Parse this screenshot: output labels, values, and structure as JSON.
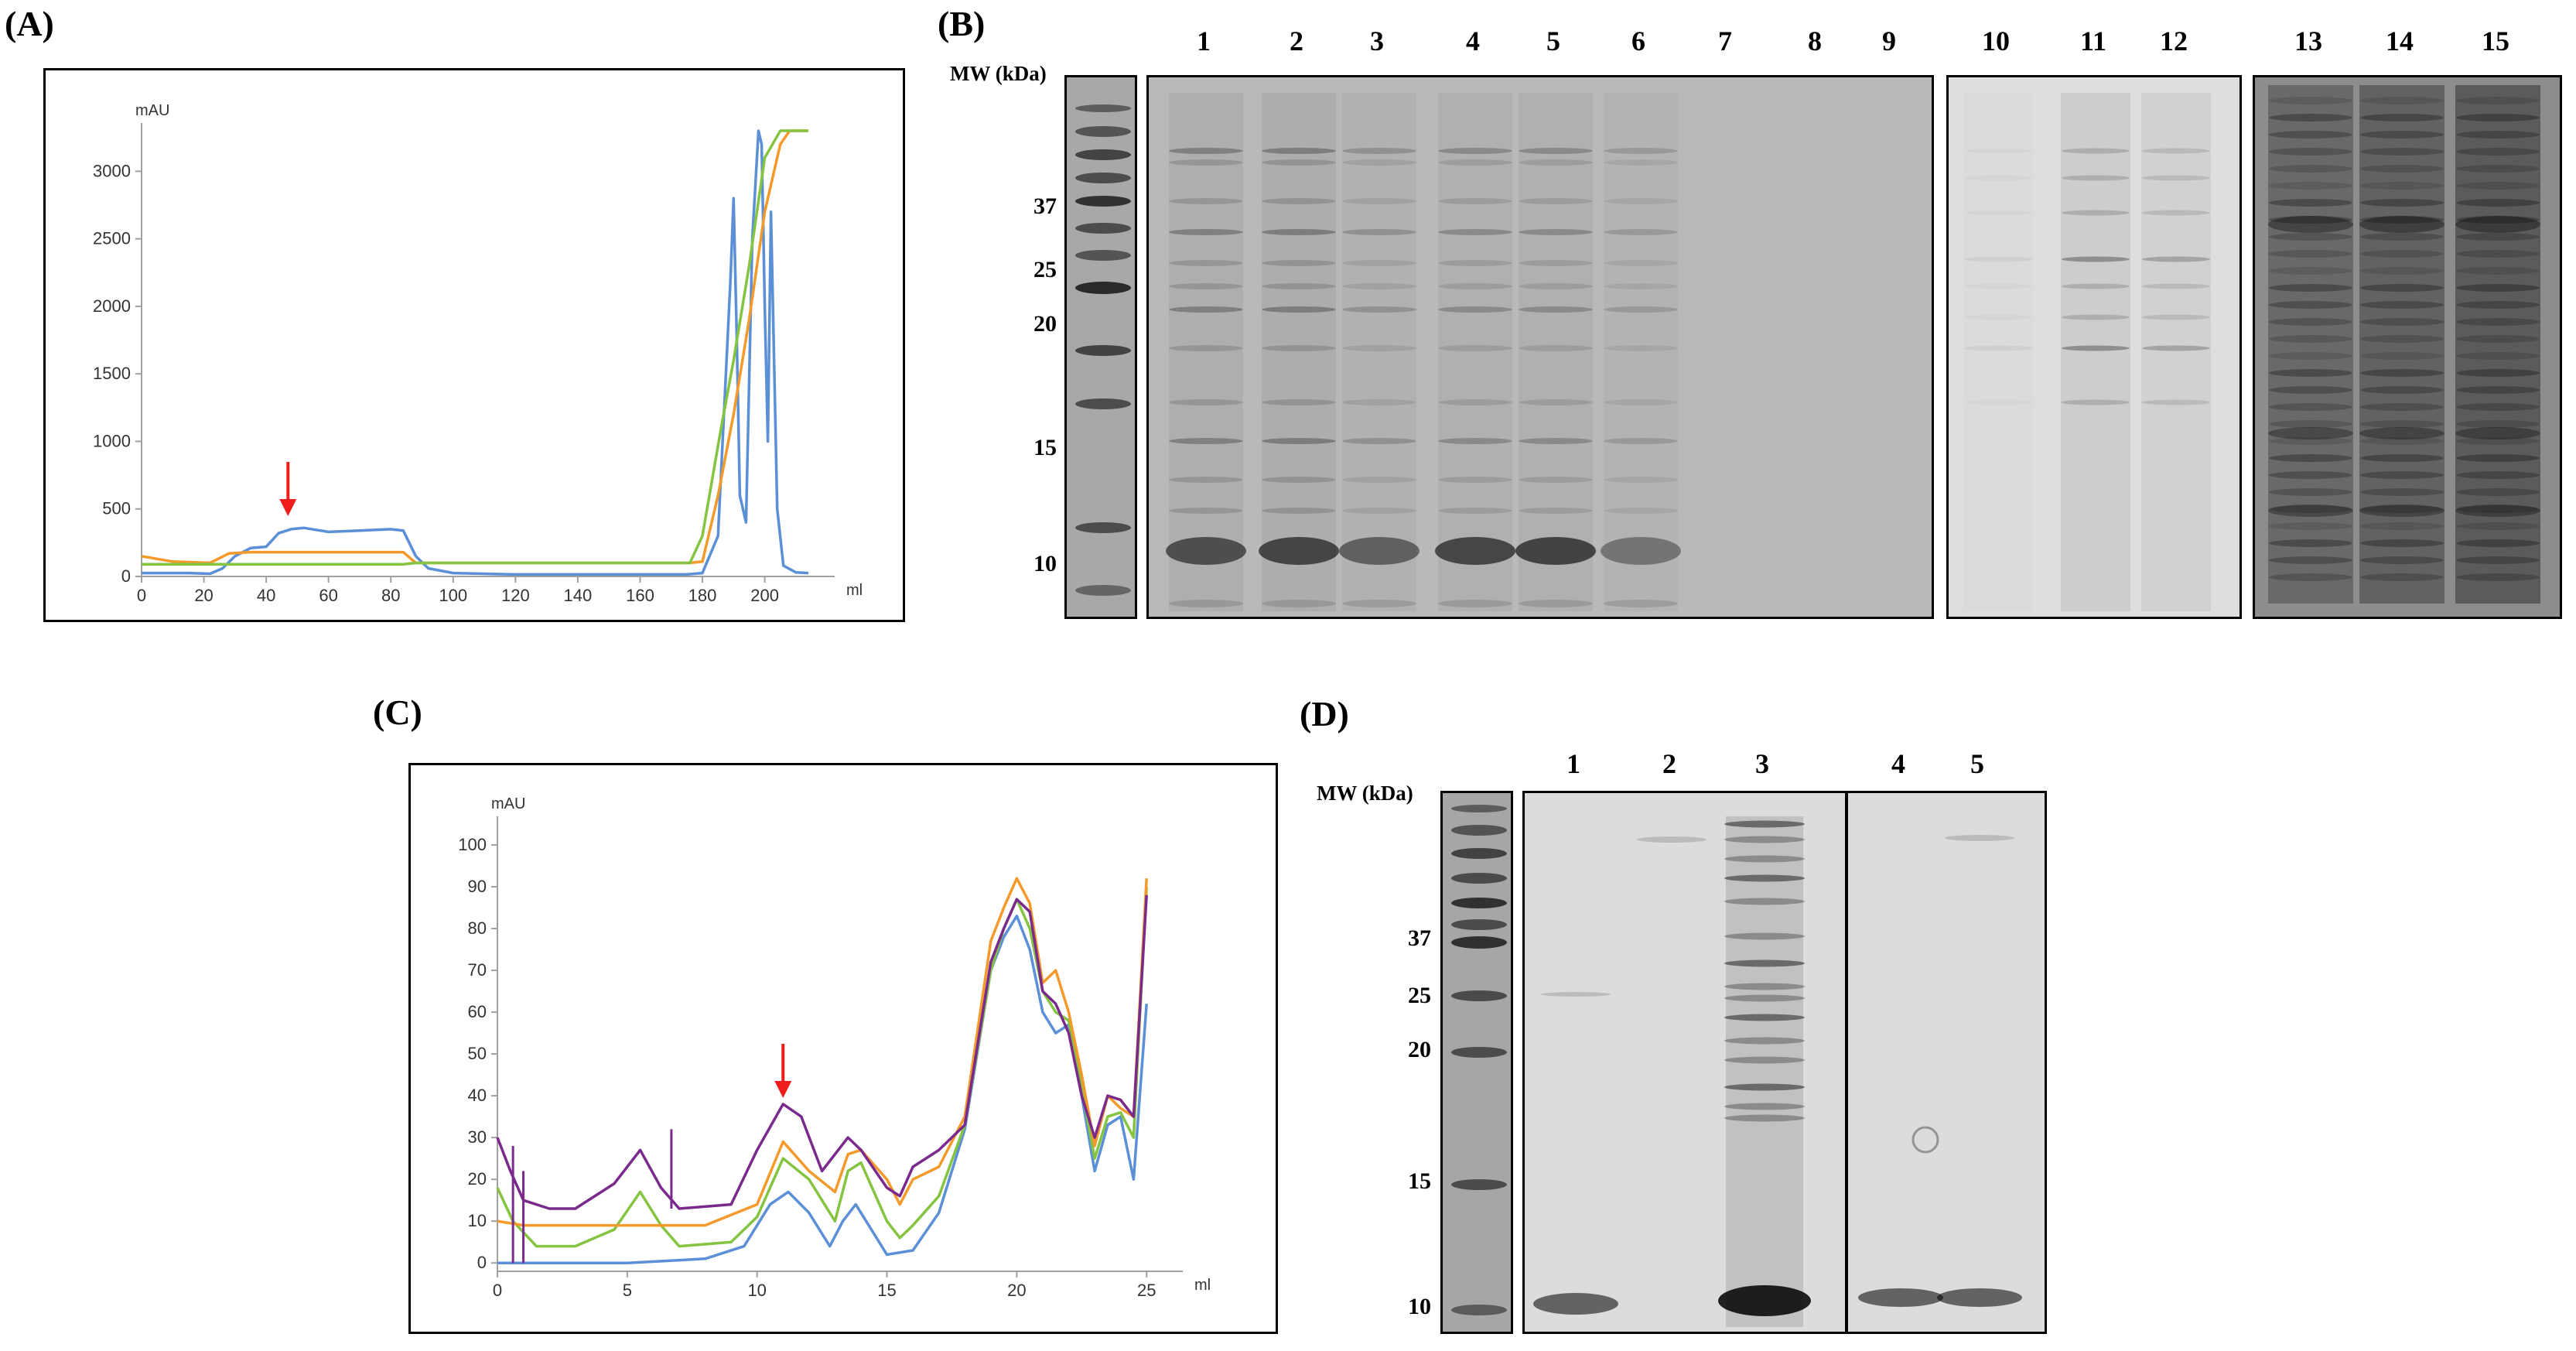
{
  "panels": {
    "A": {
      "label": "(A)"
    },
    "B": {
      "label": "(B)"
    },
    "C": {
      "label": "(C)"
    },
    "D": {
      "label": "(D)"
    }
  },
  "chart_data": [
    {
      "panel": "A",
      "type": "line",
      "ylabel": "mAU",
      "xlabel": "ml",
      "xlim": [
        0,
        215
      ],
      "ylim": [
        0,
        3300
      ],
      "xticks": [
        0,
        20,
        40,
        60,
        80,
        100,
        120,
        140,
        160,
        180,
        200
      ],
      "yticks": [
        0,
        500,
        1000,
        1500,
        2000,
        2500,
        3000
      ],
      "arrow_x": 47,
      "arrow_color": "#ee1c1c",
      "series": [
        {
          "color": "#5b8fd6",
          "x": [
            0,
            15,
            22,
            26,
            30,
            35,
            40,
            44,
            48,
            52,
            56,
            60,
            70,
            80,
            84,
            88,
            92,
            100,
            120,
            140,
            160,
            175,
            180,
            185,
            189,
            190,
            191,
            192,
            194,
            196,
            198,
            199,
            200,
            201,
            202,
            204,
            206,
            210,
            214
          ],
          "y": [
            25,
            25,
            20,
            60,
            150,
            210,
            220,
            320,
            350,
            360,
            345,
            330,
            340,
            350,
            340,
            150,
            60,
            25,
            15,
            15,
            15,
            15,
            25,
            300,
            2200,
            2800,
            1800,
            600,
            400,
            2500,
            3300,
            3200,
            2000,
            1000,
            2700,
            500,
            80,
            30,
            25
          ]
        },
        {
          "color": "#f39a2b",
          "x": [
            0,
            10,
            22,
            28,
            35,
            84,
            88,
            176,
            180,
            185,
            190,
            195,
            200,
            205,
            208,
            214
          ],
          "y": [
            150,
            110,
            100,
            170,
            180,
            180,
            100,
            100,
            110,
            600,
            1200,
            1900,
            2700,
            3200,
            3300,
            3300
          ]
        },
        {
          "color": "#84c441",
          "x": [
            0,
            84,
            88,
            176,
            180,
            186,
            190,
            195,
            200,
            205,
            214
          ],
          "y": [
            90,
            90,
            100,
            100,
            300,
            1100,
            1600,
            2300,
            3100,
            3300,
            3300
          ]
        }
      ]
    },
    {
      "panel": "C",
      "type": "line",
      "ylabel": "mAU",
      "xlabel": "ml",
      "xlim": [
        0,
        25.5
      ],
      "ylim": [
        -2,
        105
      ],
      "xticks": [
        0,
        5,
        10,
        15,
        20,
        25
      ],
      "yticks": [
        0,
        10,
        20,
        30,
        40,
        50,
        60,
        70,
        80,
        90,
        100
      ],
      "arrow_x": 11,
      "arrow_color": "#ee1c1c",
      "series": [
        {
          "color": "#5b8fd6",
          "x": [
            0,
            2,
            5,
            8,
            9.5,
            10.5,
            11.2,
            12,
            12.8,
            13.3,
            13.8,
            14.4,
            15,
            16,
            17,
            18,
            19,
            19.5,
            20,
            20.5,
            21,
            21.5,
            22,
            22.5,
            23,
            23.5,
            24,
            24.5,
            25
          ],
          "y": [
            0,
            0,
            0,
            1,
            4,
            14,
            17,
            12,
            4,
            10,
            14,
            8,
            2,
            3,
            12,
            32,
            70,
            78,
            83,
            75,
            60,
            55,
            57,
            40,
            22,
            33,
            35,
            20,
            62
          ]
        },
        {
          "color": "#84c441",
          "x": [
            0,
            0.6,
            1.5,
            3,
            4.5,
            5.5,
            6.3,
            7,
            9,
            10,
            11,
            12,
            13,
            13.5,
            14,
            15,
            15.5,
            16,
            17,
            18,
            19,
            19.5,
            20,
            20.5,
            21,
            21.5,
            22,
            22.5,
            23,
            23.5,
            24,
            24.5,
            25
          ],
          "y": [
            18,
            10,
            4,
            4,
            8,
            17,
            9,
            4,
            5,
            11,
            25,
            20,
            10,
            22,
            24,
            10,
            6,
            9,
            16,
            33,
            70,
            80,
            87,
            80,
            65,
            60,
            58,
            42,
            25,
            35,
            36,
            30,
            90
          ]
        },
        {
          "color": "#f39a2b",
          "x": [
            0,
            1,
            3,
            6,
            8,
            10,
            11,
            12,
            13,
            13.5,
            14,
            15,
            15.5,
            16,
            17,
            18,
            19,
            19.5,
            20,
            20.5,
            21,
            21.5,
            22,
            22.5,
            23,
            23.5,
            24,
            24.5,
            25
          ],
          "y": [
            10,
            9,
            9,
            9,
            9,
            14,
            29,
            22,
            17,
            26,
            27,
            20,
            14,
            20,
            23,
            35,
            77,
            85,
            92,
            86,
            67,
            70,
            60,
            45,
            28,
            40,
            37,
            35,
            92
          ]
        },
        {
          "color": "#7a2a8c",
          "x": [
            0,
            0.5,
            1,
            2,
            3,
            4.5,
            5.5,
            6.3,
            7,
            9,
            10,
            11,
            11.7,
            12.5,
            13,
            13.5,
            14,
            15,
            15.5,
            16,
            17,
            18,
            19,
            19.5,
            20,
            20.5,
            21,
            21.5,
            22,
            22.5,
            23,
            23.5,
            24,
            24.5,
            25
          ],
          "y": [
            30,
            22,
            15,
            13,
            13,
            19,
            27,
            18,
            13,
            14,
            27,
            38,
            35,
            22,
            26,
            30,
            27,
            18,
            16,
            23,
            27,
            33,
            72,
            80,
            87,
            84,
            65,
            62,
            55,
            40,
            30,
            40,
            39,
            35,
            88
          ]
        }
      ],
      "spikes": [
        {
          "x": 0.6,
          "color": "#7a2a8c",
          "y0": 0,
          "y1": 28
        },
        {
          "x": 1.0,
          "color": "#7a2a8c",
          "y0": 0,
          "y1": 22
        },
        {
          "x": 6.7,
          "color": "#7a2a8c",
          "y0": 13,
          "y1": 32
        }
      ]
    }
  ],
  "gel_B": {
    "mw_title": "MW (kDa)",
    "mw_ticks": [
      "37",
      "25",
      "20",
      "15",
      "10"
    ],
    "lanes": [
      "1",
      "2",
      "3",
      "4",
      "5",
      "6",
      "7",
      "8",
      "9",
      "10",
      "11",
      "12",
      "13",
      "14",
      "15"
    ]
  },
  "gel_D": {
    "mw_title": "MW (kDa)",
    "mw_ticks": [
      "37",
      "25",
      "20",
      "15",
      "10"
    ],
    "lanes": [
      "1",
      "2",
      "3",
      "4",
      "5"
    ]
  }
}
